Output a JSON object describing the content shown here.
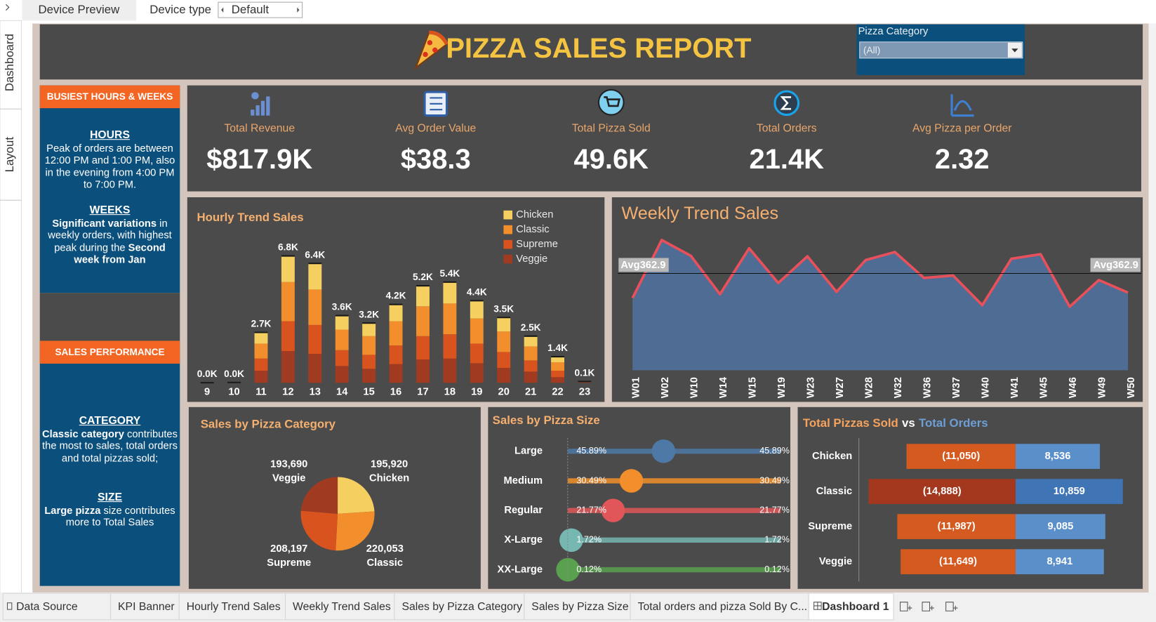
{
  "toolbar": {
    "device_preview": "Device Preview",
    "device_type_label": "Device type",
    "device_type": "Default"
  },
  "side_tabs": [
    "Dashboard",
    "Layout"
  ],
  "header": {
    "title": "PIZZA SALES REPORT",
    "filter_label": "Pizza Category",
    "filter_value": "(All)"
  },
  "sidebar": {
    "headers": [
      "BUSIEST HOURS & WEEKS",
      "SALES PERFORMANCE"
    ],
    "notes": [
      {
        "heading": "HOURS",
        "runs": [
          {
            "text": "Peak of orders are between 12:00 PM and 1:00 PM, also in the evening from 4:00 PM to 7:00 PM."
          }
        ]
      },
      {
        "heading": "WEEKS",
        "runs": [
          {
            "text": "Significant variations",
            "bold": true
          },
          {
            "text": " in weekly orders, with highest peak during the "
          },
          {
            "text": "Second week from Jan",
            "bold": true
          }
        ]
      },
      {
        "heading": "CATEGORY",
        "runs": [
          {
            "text": "Classic category",
            "bold": true
          },
          {
            "text": " contributes the most to sales, total orders and total pizzas sold;"
          }
        ]
      },
      {
        "heading": "SIZE",
        "runs": [
          {
            "text": "Large pizza",
            "bold": true
          },
          {
            "text": " size contributes more to Total Sales"
          }
        ]
      }
    ]
  },
  "kpis": [
    {
      "label": "Total Revenue",
      "value": "$817.9K"
    },
    {
      "label": "Avg Order Value",
      "value": "$38.3"
    },
    {
      "label": "Total Pizza Sold",
      "value": "49.6K"
    },
    {
      "label": "Total Orders",
      "value": "21.4K"
    },
    {
      "label": "Avg Pizza per Order",
      "value": "2.32"
    }
  ],
  "tabs": [
    "Data Source",
    "KPI Banner",
    "Hourly Trend Sales",
    "Weekly Trend Sales",
    "Sales by Pizza Category",
    "Sales by Pizza Size",
    "Total orders and pizza Sold By C...",
    "Dashboard 1"
  ],
  "active_tab": 7,
  "chart_data": [
    {
      "type": "bar",
      "stacked": true,
      "title": "Hourly Trend Sales",
      "categories": [
        "9",
        "10",
        "11",
        "12",
        "13",
        "14",
        "15",
        "16",
        "17",
        "18",
        "19",
        "20",
        "21",
        "22",
        "23"
      ],
      "series": [
        {
          "name": "Chicken",
          "color": "#f5d060",
          "values": [
            1,
            4,
            600,
            1400,
            1400,
            750,
            700,
            900,
            1100,
            1150,
            950,
            750,
            550,
            300,
            15
          ]
        },
        {
          "name": "Classic",
          "color": "#f28e2b",
          "values": [
            1,
            6,
            800,
            2100,
            1900,
            1100,
            1000,
            1300,
            1600,
            1650,
            1350,
            1100,
            750,
            450,
            20
          ]
        },
        {
          "name": "Supreme",
          "color": "#d9531e",
          "values": [
            1,
            4,
            650,
            1600,
            1550,
            850,
            750,
            1000,
            1250,
            1300,
            1050,
            850,
            600,
            350,
            18
          ]
        },
        {
          "name": "Veggie",
          "color": "#a03b22",
          "values": [
            1,
            4,
            650,
            1700,
            1550,
            900,
            750,
            1000,
            1250,
            1300,
            1050,
            800,
            600,
            300,
            15
          ]
        }
      ],
      "totals": {
        "values": [
          4,
          18,
          2700,
          6800,
          6400,
          3600,
          3200,
          4200,
          5200,
          5400,
          4400,
          3500,
          2500,
          1400,
          68
        ],
        "value_labels": [
          "0.0K",
          "0.0K",
          "2.7K",
          "6.8K",
          "6.4K",
          "3.6K",
          "3.2K",
          "4.2K",
          "5.2K",
          "5.4K",
          "4.4K",
          "3.5K",
          "2.5K",
          "1.4K",
          "0.1K"
        ]
      },
      "ylim": [
        0,
        7500
      ],
      "legend": "top-right"
    },
    {
      "type": "area",
      "title": "Weekly Trend Sales",
      "categories": [
        "W01",
        "W02",
        "W10",
        "W14",
        "W15",
        "W19",
        "W23",
        "W27",
        "W28",
        "W32",
        "W36",
        "W37",
        "W40",
        "W41",
        "W45",
        "W46",
        "W49",
        "W50"
      ],
      "values": [
        271,
        488,
        429,
        285,
        457,
        327,
        427,
        294,
        413,
        443,
        346,
        355,
        244,
        418,
        435,
        238,
        338,
        291
      ],
      "color": "#4f6d94",
      "line_color": "#e8505b",
      "ylim": [
        0,
        560
      ],
      "reference_line": {
        "label": "Avg362.9",
        "value": 362.9
      }
    },
    {
      "type": "pie",
      "title": "Sales by Pizza Category",
      "categories": [
        "Chicken",
        "Classic",
        "Supreme",
        "Veggie"
      ],
      "values": [
        195920,
        220053,
        208197,
        193690
      ],
      "value_labels": [
        "195,920",
        "220,053",
        "208,197",
        "193,690"
      ],
      "colors": [
        "#f5d060",
        "#f28e2b",
        "#d9531e",
        "#a03b22"
      ]
    },
    {
      "type": "dot",
      "orientation": "horizontal",
      "title": "Sales by Pizza Size",
      "categories": [
        "Large",
        "Medium",
        "Regular",
        "X-Large",
        "XX-Large"
      ],
      "values": [
        45.89,
        30.49,
        21.77,
        1.72,
        0.12
      ],
      "value_labels": [
        "45.89%",
        "30.49%",
        "21.77%",
        "1.72%",
        "0.12%"
      ],
      "colors": [
        "#4e79a7",
        "#f28e2b",
        "#e15759",
        "#76b7b2",
        "#59a14f"
      ],
      "xlim": [
        0,
        102
      ]
    },
    {
      "type": "bar",
      "orientation": "horizontal",
      "title_connector": "vs",
      "categories": [
        "Chicken",
        "Classic",
        "Supreme",
        "Veggie"
      ],
      "series": [
        {
          "name": "Total Pizzas Sold",
          "colors": [
            "#d55a1f",
            "#a3381f",
            "#d55a1f",
            "#d55a1f"
          ],
          "values": [
            -11050,
            -14888,
            -11987,
            -11649
          ],
          "value_labels": [
            "(11,050)",
            "(14,888)",
            "(11,987)",
            "(11,649)"
          ]
        },
        {
          "name": "Total Orders",
          "colors": [
            "#5b8fc9",
            "#3f74b5",
            "#5b8fc9",
            "#5b8fc9"
          ],
          "values": [
            8536,
            10859,
            9085,
            8941
          ],
          "value_labels": [
            "8,536",
            "10,859",
            "9,085",
            "8,941"
          ]
        }
      ],
      "xlim": [
        -15500,
        12800
      ]
    }
  ]
}
